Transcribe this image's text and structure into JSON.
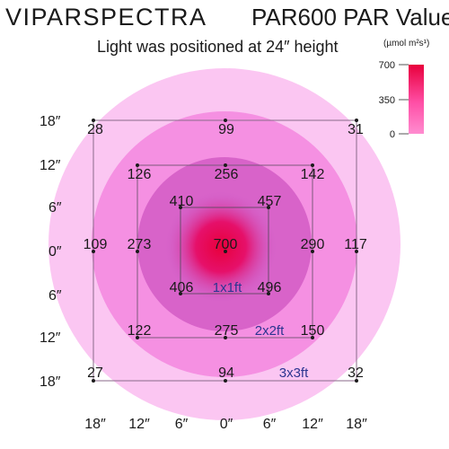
{
  "header": {
    "brand": "VIPARSPECTRA",
    "model": "PAR600 PAR Value",
    "subtitle": "Light was positioned at 24″ height"
  },
  "legend": {
    "unit": "(µmol m²s¹)",
    "ticks": [
      "700",
      "350",
      "0"
    ],
    "colors": {
      "high": "#e8003c",
      "low": "#ff8cd0"
    }
  },
  "axes": {
    "y_labels": [
      "18″",
      "12″",
      "6″",
      "0″",
      "6″",
      "12″",
      "18″"
    ],
    "x_labels": [
      "18″",
      "12″",
      "6″",
      "0″",
      "6″",
      "12″",
      "18″"
    ]
  },
  "zones": {
    "outer": "#fbc6f2",
    "mid": "#f590e2",
    "inner": "#d863c9",
    "core": "#e6106a"
  },
  "areas": {
    "a1": "1x1ft",
    "a2": "2x2ft",
    "a3": "3x3ft"
  },
  "values": {
    "r3": [
      "28",
      "99",
      "31",
      "109",
      "117",
      "27",
      "94",
      "32"
    ],
    "r2": [
      "126",
      "256",
      "142",
      "273",
      "290",
      "122",
      "275",
      "150"
    ],
    "r1": [
      "410",
      "457",
      "406",
      "496"
    ],
    "center": "700"
  }
}
